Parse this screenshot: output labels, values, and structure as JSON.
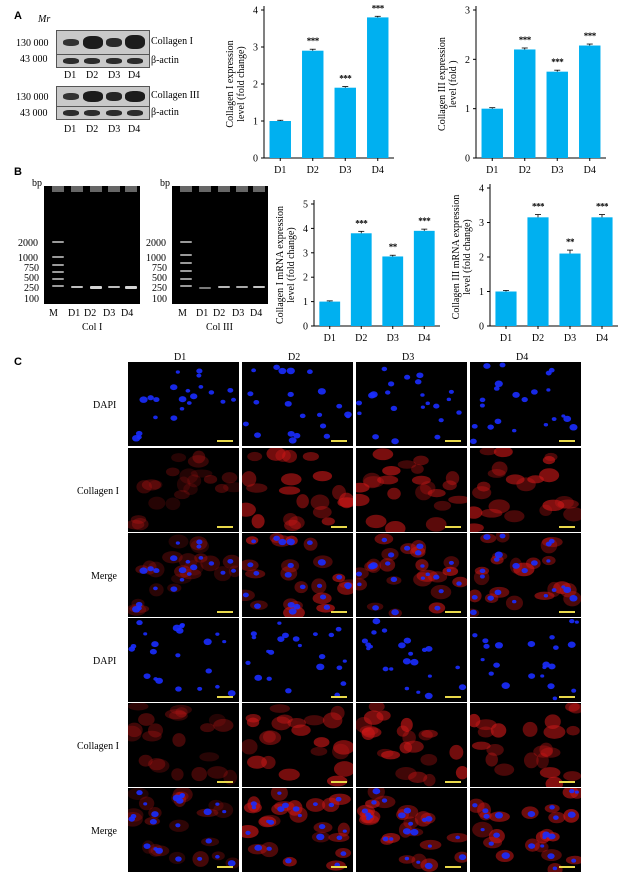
{
  "panel_a": {
    "letter": "A",
    "mr_label": "Mr",
    "blot1": {
      "marker_top": "130 000",
      "marker_bottom": "43 000",
      "protein": "Collagen I",
      "loading": "β-actin"
    },
    "blot2": {
      "marker_top": "130 000",
      "marker_bottom": "43 000",
      "protein": "Collagen III",
      "loading": "β-actin"
    },
    "lanes": [
      "D1",
      "D2",
      "D3",
      "D4"
    ]
  },
  "panel_b": {
    "letter": "B",
    "gel1": {
      "unit": "bp",
      "ladder": [
        "2000",
        "1000",
        "750",
        "500",
        "250",
        "100"
      ],
      "lanes": [
        "M",
        "D1",
        "D2",
        "D3",
        "D4"
      ],
      "caption": "Col I"
    },
    "gel2": {
      "unit": "bp",
      "ladder": [
        "2000",
        "1000",
        "750",
        "500",
        "250",
        "100"
      ],
      "lanes": [
        "M",
        "D1",
        "D2",
        "D3",
        "D4"
      ],
      "caption": "Col III"
    }
  },
  "panel_c": {
    "letter": "C",
    "columns": [
      "D1",
      "D2",
      "D3",
      "D4"
    ],
    "rows": [
      "DAPI",
      "Collagen I",
      "Merge",
      "DAPI",
      "Collagen I",
      "Merge"
    ]
  },
  "colors": {
    "bar": "#00B0F0",
    "dapi": "#1a2cff",
    "collagen": "#d01818",
    "scalebar": "#e8d84a"
  },
  "chart_data": [
    {
      "type": "bar",
      "id": "a1",
      "categories": [
        "D1",
        "D2",
        "D3",
        "D4"
      ],
      "values": [
        1.0,
        2.9,
        1.9,
        3.8
      ],
      "errors": [
        0.02,
        0.04,
        0.03,
        0.03
      ],
      "significance": [
        "",
        "***",
        "***",
        "***"
      ],
      "ylabel": "Collagen I expression level (fold change)",
      "ylim": [
        0,
        4
      ],
      "yticks": [
        "0",
        "1",
        "2",
        "3",
        "4"
      ]
    },
    {
      "type": "bar",
      "id": "a2",
      "categories": [
        "D1",
        "D2",
        "D3",
        "D4"
      ],
      "values": [
        1.0,
        2.2,
        1.75,
        2.28
      ],
      "errors": [
        0.02,
        0.03,
        0.03,
        0.03
      ],
      "significance": [
        "",
        "***",
        "***",
        "***"
      ],
      "ylabel": "Collagen III expression level (fold )",
      "ylim": [
        0,
        3
      ],
      "yticks": [
        "0",
        "1",
        "2",
        "3"
      ]
    },
    {
      "type": "bar",
      "id": "b1",
      "categories": [
        "D1",
        "D2",
        "D3",
        "D4"
      ],
      "values": [
        1.0,
        3.8,
        2.85,
        3.9
      ],
      "errors": [
        0.03,
        0.08,
        0.05,
        0.07
      ],
      "significance": [
        "",
        "***",
        "**",
        "***"
      ],
      "ylabel": "Collagen I mRNA expression level (fold change)",
      "ylim": [
        0,
        5
      ],
      "yticks": [
        "0",
        "1",
        "2",
        "3",
        "4",
        "5"
      ]
    },
    {
      "type": "bar",
      "id": "b2",
      "categories": [
        "D1",
        "D2",
        "D3",
        "D4"
      ],
      "values": [
        1.0,
        3.15,
        2.1,
        3.15
      ],
      "errors": [
        0.03,
        0.08,
        0.1,
        0.08
      ],
      "significance": [
        "",
        "***",
        "**",
        "***"
      ],
      "ylabel": "Collagen III mRNA expression level (fold change)",
      "ylim": [
        0,
        4
      ],
      "yticks": [
        "0",
        "1",
        "2",
        "3",
        "4"
      ]
    }
  ]
}
